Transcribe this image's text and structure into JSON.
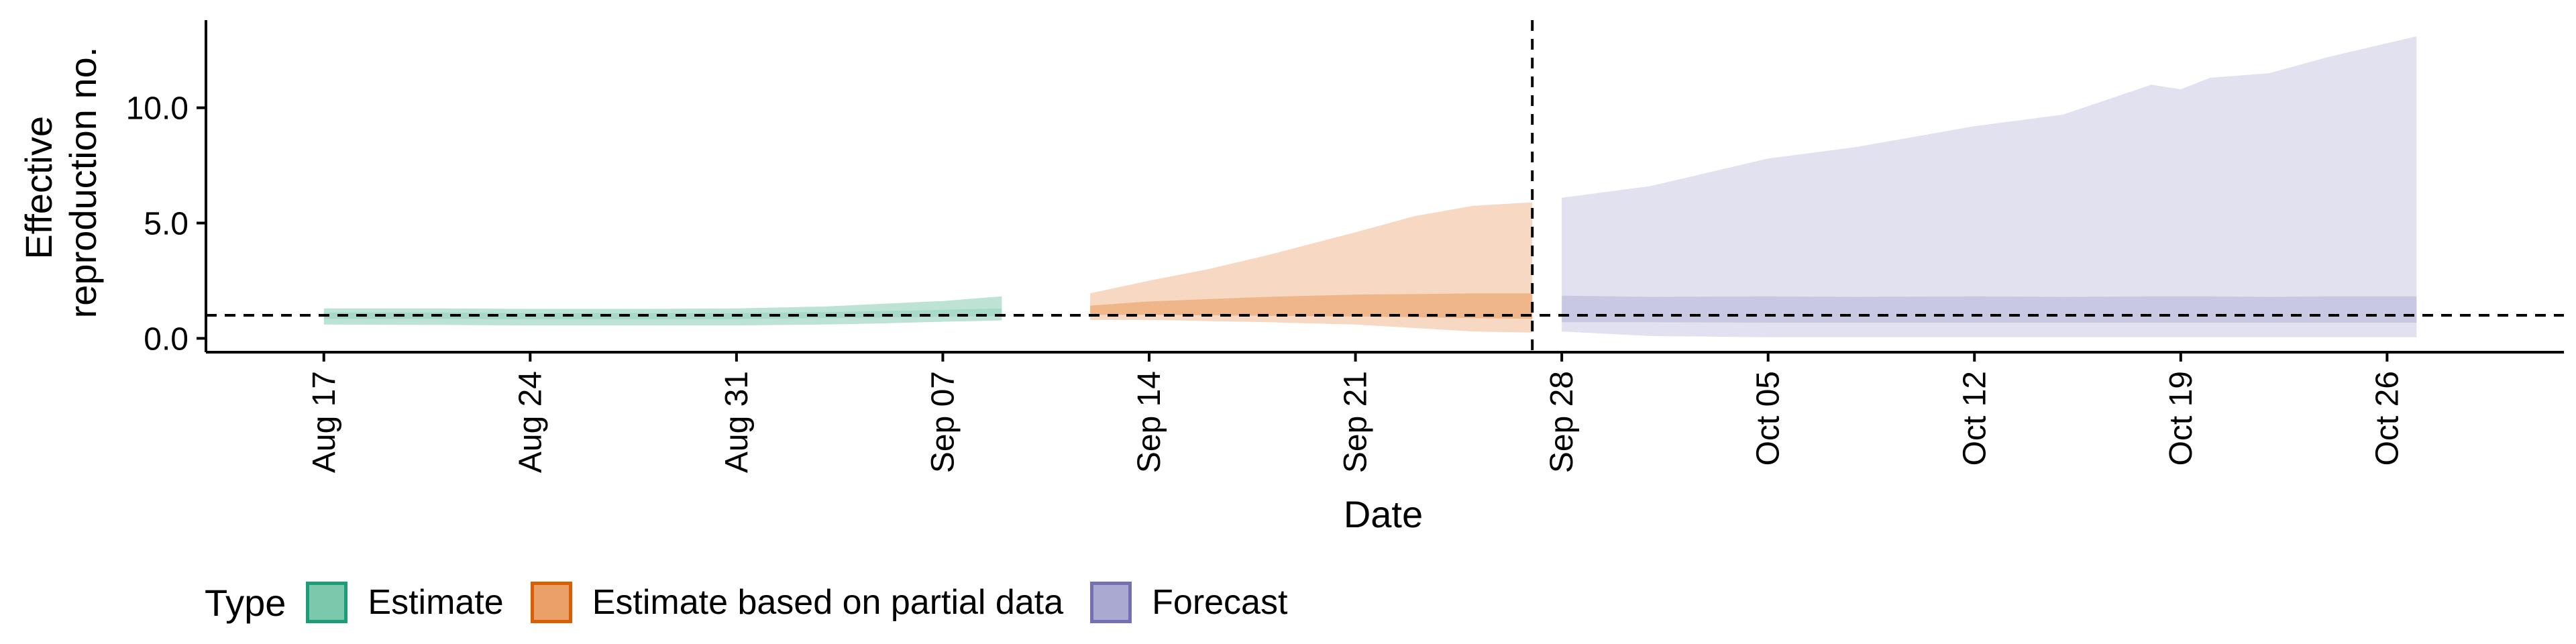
{
  "chart_data": {
    "type": "area",
    "x_axis_label": "Date",
    "y_axis_label_lines": [
      "Effective",
      "reproduction no."
    ],
    "x_ticks": [
      {
        "date": "2020-08-17",
        "label": "Aug 17"
      },
      {
        "date": "2020-08-24",
        "label": "Aug 24"
      },
      {
        "date": "2020-08-31",
        "label": "Aug 31"
      },
      {
        "date": "2020-09-07",
        "label": "Sep 07"
      },
      {
        "date": "2020-09-14",
        "label": "Sep 14"
      },
      {
        "date": "2020-09-21",
        "label": "Sep 21"
      },
      {
        "date": "2020-09-28",
        "label": "Sep 28"
      },
      {
        "date": "2020-10-05",
        "label": "Oct 05"
      },
      {
        "date": "2020-10-12",
        "label": "Oct 12"
      },
      {
        "date": "2020-10-19",
        "label": "Oct 19"
      },
      {
        "date": "2020-10-26",
        "label": "Oct 26"
      }
    ],
    "y_ticks": [
      {
        "value": 0,
        "label": "0.0"
      },
      {
        "value": 5,
        "label": "5.0"
      },
      {
        "value": 10,
        "label": "10.0"
      }
    ],
    "xlim": [
      "2020-08-13",
      "2020-11-01"
    ],
    "ylim": [
      -0.6,
      13.8
    ],
    "reference_line_y": 1.0,
    "vertical_line_date": "2020-09-27",
    "grid": false,
    "legend": {
      "title": "Type",
      "position": "bottom",
      "items": [
        {
          "label": "Estimate",
          "fill": "#7BC8AD",
          "border": "#1B9E77"
        },
        {
          "label": "Estimate based on partial data",
          "fill": "#EBA068",
          "border": "#D95F02"
        },
        {
          "label": "Forecast",
          "fill": "#AAA9D2",
          "border": "#7570B3"
        }
      ]
    },
    "series": [
      {
        "name": "Estimate",
        "outer_color": "#BDE3D5",
        "inner_color": "#A6D9C7",
        "points": [
          {
            "date": "2020-08-17",
            "outer_lo": 0.6,
            "outer_hi": 1.3,
            "inner_lo": 0.85,
            "inner_hi": 1.12
          },
          {
            "date": "2020-08-21",
            "outer_lo": 0.58,
            "outer_hi": 1.3,
            "inner_lo": 0.85,
            "inner_hi": 1.12
          },
          {
            "date": "2020-08-24",
            "outer_lo": 0.56,
            "outer_hi": 1.28,
            "inner_lo": 0.84,
            "inner_hi": 1.1
          },
          {
            "date": "2020-08-28",
            "outer_lo": 0.56,
            "outer_hi": 1.28,
            "inner_lo": 0.84,
            "inner_hi": 1.1
          },
          {
            "date": "2020-08-31",
            "outer_lo": 0.56,
            "outer_hi": 1.3,
            "inner_lo": 0.84,
            "inner_hi": 1.1
          },
          {
            "date": "2020-09-03",
            "outer_lo": 0.6,
            "outer_hi": 1.38,
            "inner_lo": 0.88,
            "inner_hi": 1.14
          },
          {
            "date": "2020-09-05",
            "outer_lo": 0.65,
            "outer_hi": 1.5,
            "inner_lo": 0.9,
            "inner_hi": 1.18
          },
          {
            "date": "2020-09-07",
            "outer_lo": 0.72,
            "outer_hi": 1.62,
            "inner_lo": 0.93,
            "inner_hi": 1.24
          },
          {
            "date": "2020-09-09",
            "outer_lo": 0.78,
            "outer_hi": 1.82,
            "inner_lo": 0.96,
            "inner_hi": 1.3
          }
        ]
      },
      {
        "name": "Estimate based on partial data",
        "outer_color": "#F7D8C2",
        "inner_color": "#EFB68A",
        "points": [
          {
            "date": "2020-09-12",
            "outer_lo": 0.8,
            "outer_hi": 1.95,
            "inner_lo": 1.02,
            "inner_hi": 1.42
          },
          {
            "date": "2020-09-14",
            "outer_lo": 0.8,
            "outer_hi": 2.5,
            "inner_lo": 1.02,
            "inner_hi": 1.6
          },
          {
            "date": "2020-09-16",
            "outer_lo": 0.75,
            "outer_hi": 3.0,
            "inner_lo": 1.0,
            "inner_hi": 1.7
          },
          {
            "date": "2020-09-18",
            "outer_lo": 0.7,
            "outer_hi": 3.6,
            "inner_lo": 0.98,
            "inner_hi": 1.8
          },
          {
            "date": "2020-09-21",
            "outer_lo": 0.6,
            "outer_hi": 4.6,
            "inner_lo": 0.95,
            "inner_hi": 1.9
          },
          {
            "date": "2020-09-23",
            "outer_lo": 0.45,
            "outer_hi": 5.3,
            "inner_lo": 0.92,
            "inner_hi": 1.92
          },
          {
            "date": "2020-09-25",
            "outer_lo": 0.3,
            "outer_hi": 5.75,
            "inner_lo": 0.88,
            "inner_hi": 1.95
          },
          {
            "date": "2020-09-27",
            "outer_lo": 0.25,
            "outer_hi": 5.9,
            "inner_lo": 0.85,
            "inner_hi": 1.95
          }
        ]
      },
      {
        "name": "Forecast",
        "outer_color": "#E2E1EF",
        "inner_color": "#C9C8E2",
        "points": [
          {
            "date": "2020-09-28",
            "outer_lo": 0.3,
            "outer_hi": 6.1,
            "inner_lo": 0.7,
            "inner_hi": 1.85
          },
          {
            "date": "2020-10-01",
            "outer_lo": 0.1,
            "outer_hi": 6.6,
            "inner_lo": 0.7,
            "inner_hi": 1.8
          },
          {
            "date": "2020-10-05",
            "outer_lo": 0.05,
            "outer_hi": 7.8,
            "inner_lo": 0.68,
            "inner_hi": 1.82
          },
          {
            "date": "2020-10-08",
            "outer_lo": 0.05,
            "outer_hi": 8.3,
            "inner_lo": 0.68,
            "inner_hi": 1.8
          },
          {
            "date": "2020-10-12",
            "outer_lo": 0.05,
            "outer_hi": 9.2,
            "inner_lo": 0.68,
            "inner_hi": 1.82
          },
          {
            "date": "2020-10-15",
            "outer_lo": 0.05,
            "outer_hi": 9.7,
            "inner_lo": 0.68,
            "inner_hi": 1.8
          },
          {
            "date": "2020-10-18",
            "outer_lo": 0.05,
            "outer_hi": 11.0,
            "inner_lo": 0.68,
            "inner_hi": 1.82
          },
          {
            "date": "2020-10-19",
            "outer_lo": 0.05,
            "outer_hi": 10.8,
            "inner_lo": 0.68,
            "inner_hi": 1.82
          },
          {
            "date": "2020-10-20",
            "outer_lo": 0.05,
            "outer_hi": 11.3,
            "inner_lo": 0.68,
            "inner_hi": 1.82
          },
          {
            "date": "2020-10-22",
            "outer_lo": 0.05,
            "outer_hi": 11.5,
            "inner_lo": 0.68,
            "inner_hi": 1.8
          },
          {
            "date": "2020-10-24",
            "outer_lo": 0.05,
            "outer_hi": 12.2,
            "inner_lo": 0.68,
            "inner_hi": 1.82
          },
          {
            "date": "2020-10-27",
            "outer_lo": 0.05,
            "outer_hi": 13.1,
            "inner_lo": 0.68,
            "inner_hi": 1.82
          }
        ]
      }
    ]
  }
}
